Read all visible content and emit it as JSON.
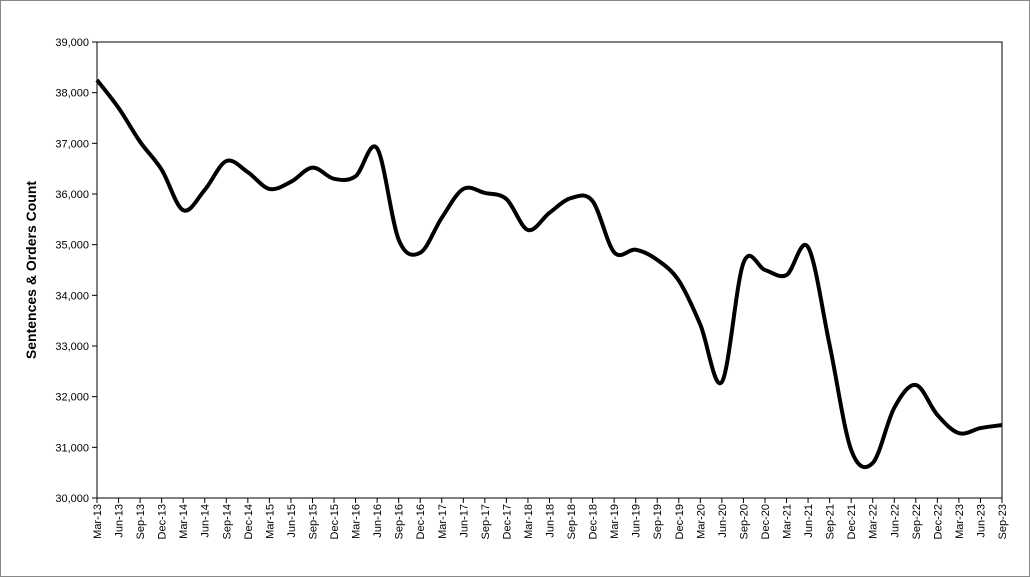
{
  "chart_data": {
    "type": "line",
    "y_label": "Sentences & Orders Count",
    "categories": [
      "Mar-13",
      "Jun-13",
      "Sep-13",
      "Dec-13",
      "Mar-14",
      "Jun-14",
      "Sep-14",
      "Dec-14",
      "Mar-15",
      "Jun-15",
      "Sep-15",
      "Dec-15",
      "Mar-16",
      "Jun-16",
      "Sep-16",
      "Dec-16",
      "Mar-17",
      "Jun-17",
      "Sep-17",
      "Dec-17",
      "Mar-18",
      "Jun-18",
      "Sep-18",
      "Dec-18",
      "Mar-19",
      "Jun-19",
      "Sep-19",
      "Dec-19",
      "Mar-20",
      "Jun-20",
      "Sep-20",
      "Dec-20",
      "Mar-21",
      "Jun-21",
      "Sep-21",
      "Dec-21",
      "Mar-22",
      "Jun-22",
      "Sep-22",
      "Dec-22",
      "Mar-23",
      "Jun-23",
      "Sep-23"
    ],
    "values": [
      38250,
      37700,
      37030,
      36480,
      35680,
      36080,
      36650,
      36430,
      36100,
      36240,
      36520,
      36300,
      36350,
      36900,
      35100,
      34840,
      35530,
      36100,
      36020,
      35900,
      35290,
      35630,
      35920,
      35860,
      34850,
      34900,
      34700,
      34290,
      33420,
      32290,
      34640,
      34500,
      34400,
      34950,
      33020,
      30950,
      30690,
      31780,
      32230,
      31640,
      31280,
      31380,
      31440
    ],
    "color": "#000000",
    "ylim": [
      30000,
      39000
    ],
    "yticks": [
      {
        "value": 30000,
        "label": "30,000"
      },
      {
        "value": 31000,
        "label": "31,000"
      },
      {
        "value": 32000,
        "label": "32,000"
      },
      {
        "value": 33000,
        "label": "33,000"
      },
      {
        "value": 34000,
        "label": "34,000"
      },
      {
        "value": 35000,
        "label": "35,000"
      },
      {
        "value": 36000,
        "label": "36,000"
      },
      {
        "value": 37000,
        "label": "37,000"
      },
      {
        "value": 38000,
        "label": "38,000"
      },
      {
        "value": 39000,
        "label": "39,000"
      }
    ],
    "grid": false
  }
}
